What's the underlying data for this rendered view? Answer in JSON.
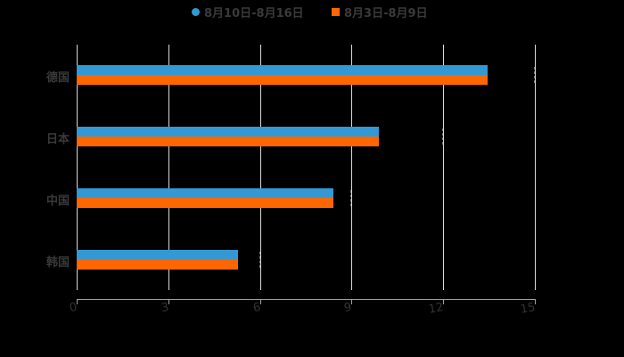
{
  "legend": [
    {
      "label": "8月10日-8月16日",
      "color": "#3399d4",
      "marker": "circle"
    },
    {
      "label": "8月3日-8月9日",
      "color": "#ff6600",
      "marker": "square"
    }
  ],
  "x_axis": {
    "ticks": [
      "0",
      "3",
      "6",
      "9",
      "12",
      "15"
    ]
  },
  "categories": [
    "德国",
    "日本",
    "中国",
    "韩国"
  ],
  "chart_data": {
    "type": "bar",
    "orientation": "horizontal",
    "title": "",
    "xlabel": "",
    "ylabel": "",
    "categories": [
      "德国",
      "日本",
      "中国",
      "韩国"
    ],
    "series": [
      {
        "name": "8月10日-8月16日",
        "color": "#3399d4",
        "values": [
          13.45,
          9.89,
          8.4,
          5.28
        ]
      },
      {
        "name": "8月3日-8月9日",
        "color": "#ff6600",
        "values": [
          13.45,
          9.89,
          8.4,
          5.28
        ]
      }
    ],
    "xlim": [
      0,
      15
    ],
    "xticks": [
      0,
      3,
      6,
      9,
      12,
      15
    ],
    "grid": true,
    "legend_position": "top"
  }
}
